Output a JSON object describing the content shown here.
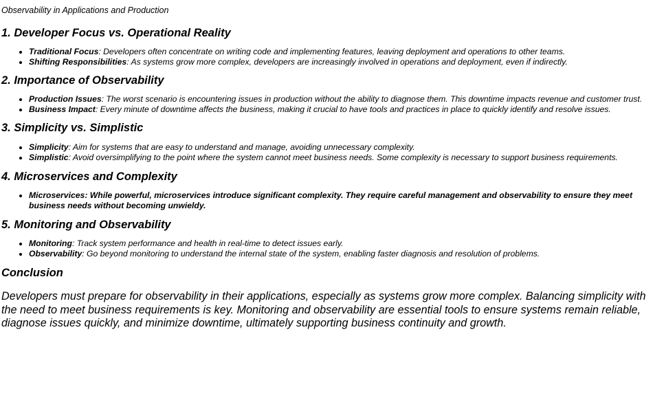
{
  "doc_title": "Observability in Applications and Production",
  "sections": [
    {
      "heading": "1. Developer Focus vs. Operational Reality",
      "items": [
        {
          "term": "Traditional Focus",
          "text": ": Developers often concentrate on writing code and implementing features, leaving deployment and operations to other teams."
        },
        {
          "term": "Shifting Responsibilities",
          "text": ": As systems grow more complex, developers are increasingly involved in operations and deployment, even if indirectly."
        }
      ]
    },
    {
      "heading": "2. Importance of Observability",
      "items": [
        {
          "term": "Production Issues",
          "text": ": The worst scenario is encountering issues in production without the ability to diagnose them. This downtime impacts revenue and customer trust."
        },
        {
          "term": "Business Impact",
          "text": ": Every minute of downtime affects the business, making it crucial to have tools and practices in place to quickly identify and resolve issues."
        }
      ]
    },
    {
      "heading": "3. Simplicity vs. Simplistic",
      "items": [
        {
          "term": "Simplicity",
          "text": ": Aim for systems that are easy to understand and manage, avoiding unnecessary complexity."
        },
        {
          "term": "Simplistic",
          "text": ": Avoid oversimplifying to the point where the system cannot meet business needs. Some complexity is necessary to support business requirements."
        }
      ]
    },
    {
      "heading": "4. Microservices and Complexity",
      "items": [
        {
          "term": "Microservices",
          "text": ": While powerful, microservices introduce significant complexity. They require careful management and observability to ensure they meet business needs without becoming unwieldy."
        }
      ]
    },
    {
      "heading": "5. Monitoring and Observability",
      "items": [
        {
          "term": "Monitoring",
          "text": ": Track system performance and health in real-time to detect issues early."
        },
        {
          "term": "Observability",
          "text": ": Go beyond monitoring to understand the internal state of the system, enabling faster diagnosis and resolution of problems."
        }
      ]
    }
  ],
  "conclusion": {
    "heading": "Conclusion",
    "text": "Developers must prepare for observability in their applications, especially as systems grow more complex. Balancing simplicity with the need to meet business requirements is key. Monitoring and observability are essential tools to ensure systems remain reliable, diagnose issues quickly, and minimize downtime, ultimately supporting business continuity and growth."
  }
}
